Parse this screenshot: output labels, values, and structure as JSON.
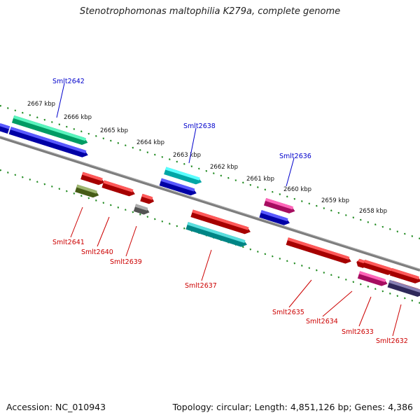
{
  "title": "Stenotrophomonas maltophilia K279a, complete genome",
  "accession": "Accession: NC_010943",
  "topology": "Topology: circular; Length: 4,851,126 bp; Genes: 4,386",
  "kbp_labels": [
    "2667 kbp",
    "2666 kbp",
    "2665 kbp",
    "2664 kbp",
    "2663 kbp",
    "2662 kbp",
    "2661 kbp",
    "2660 kbp",
    "2659 kbp",
    "2658 kbp"
  ],
  "colors": {
    "forward_label": "#0000cc",
    "reverse_label": "#cc0000",
    "tick": "#228b22",
    "backbone": "#808080"
  },
  "genes_top": [
    {
      "name": "Smlt2642",
      "labeled": true,
      "color": "#00ee99"
    },
    {
      "name": "",
      "labeled": false,
      "color": "#0000ff"
    },
    {
      "name": "",
      "labeled": false,
      "color": "#0000ff"
    },
    {
      "name": "Smlt2638",
      "labeled": true,
      "color": "#00ffff"
    },
    {
      "name": "",
      "labeled": false,
      "color": "#0000ff"
    },
    {
      "name": "Smlt2636",
      "labeled": true,
      "color": "#ff1493"
    },
    {
      "name": "",
      "labeled": false,
      "color": "#0000ff"
    }
  ],
  "genes_bottom": [
    {
      "name": "",
      "labeled": false,
      "color": "#ff0000"
    },
    {
      "name": "",
      "labeled": false,
      "color": "#ff0000"
    },
    {
      "name": "",
      "labeled": false,
      "color": "#ff0000"
    },
    {
      "name": "Smlt2641",
      "labeled": true,
      "color": "#6b8e23"
    },
    {
      "name": "Smlt2640",
      "labeled": true,
      "color": "#ff0000"
    },
    {
      "name": "Smlt2639",
      "labeled": true,
      "color": "#808080"
    },
    {
      "name": "Smlt2637",
      "labeled": true,
      "color": "#00cccc"
    },
    {
      "name": "",
      "labeled": false,
      "color": "#ff0000"
    },
    {
      "name": "",
      "labeled": false,
      "color": "#ff0000"
    },
    {
      "name": "",
      "labeled": false,
      "color": "#ff0000"
    },
    {
      "name": "",
      "labeled": false,
      "color": "#ff0000"
    },
    {
      "name": "Smlt2635",
      "labeled": true,
      "color": "#ff0000"
    },
    {
      "name": "Smlt2634",
      "labeled": true,
      "color": "#ff1493"
    },
    {
      "name": "Smlt2633",
      "labeled": true,
      "color": "#ff0000"
    },
    {
      "name": "Smlt2632",
      "labeled": true,
      "color": "#483d8b"
    }
  ]
}
